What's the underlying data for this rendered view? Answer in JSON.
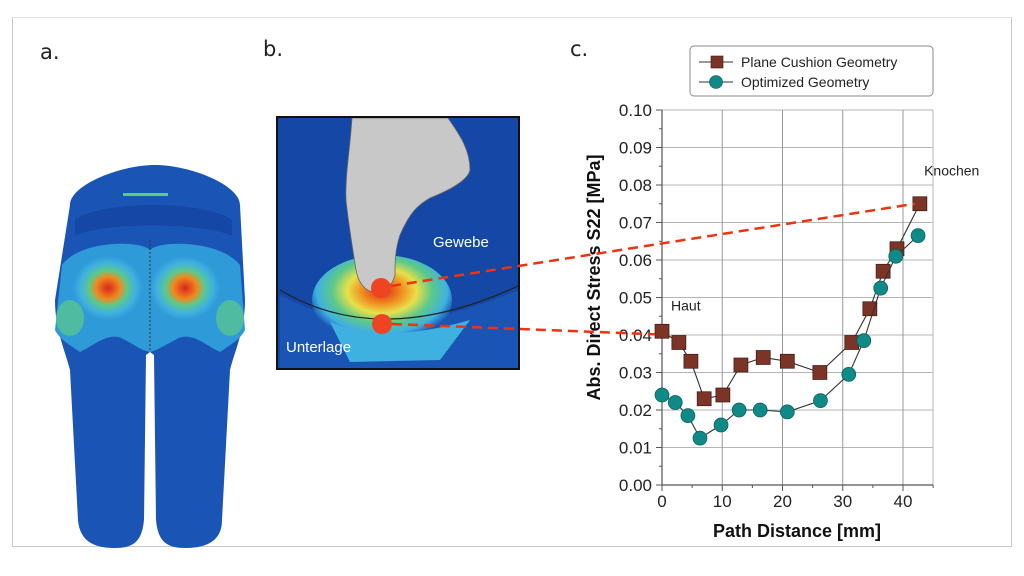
{
  "figure": {
    "panel_labels": [
      "a.",
      "b.",
      "c."
    ],
    "panel_b": {
      "labels": {
        "tissue": "Gewebe",
        "support": "Unterlage"
      }
    },
    "colors": {
      "fem_blue_dark": "#1447a6",
      "fem_blue_mid": "#2a86d4",
      "fem_cyan": "#3fb1e0",
      "fem_green": "#5cc98a",
      "fem_yellow": "#e8e04a",
      "fem_orange": "#f08a1e",
      "fem_red": "#d9281c",
      "marker_red": "#ee4422",
      "series_square": "#7b3426",
      "series_circle": "#0f8a86",
      "dashed_connector": "#ee3311"
    }
  },
  "chart_data": {
    "type": "line",
    "title": "",
    "xlabel": "Path Distance [mm]",
    "ylabel": "Abs. Direct Stress S22 [MPa]",
    "xlim": [
      0,
      45
    ],
    "ylim": [
      0.0,
      0.1
    ],
    "xticks": [
      0,
      10,
      20,
      30,
      40
    ],
    "xtick_labels": [
      "0",
      "10",
      "20",
      "30",
      "40"
    ],
    "yticks": [
      0.0,
      0.01,
      0.02,
      0.03,
      0.04,
      0.05,
      0.06,
      0.07,
      0.08,
      0.09,
      0.1
    ],
    "ytick_labels": [
      "0.00",
      "0.01",
      "0.02",
      "0.03",
      "0.04",
      "0.05",
      "0.06",
      "0.07",
      "0.08",
      "0.09",
      "0.10"
    ],
    "grid": true,
    "legend_position": "top-right",
    "series": [
      {
        "name": "Plane Cushion Geometry",
        "marker": "square",
        "x": [
          0,
          2.8,
          4.8,
          7.0,
          10.1,
          13.1,
          16.8,
          20.8,
          26.2,
          31.5,
          34.5,
          36.7,
          39.0,
          42.8
        ],
        "y": [
          0.041,
          0.038,
          0.033,
          0.023,
          0.024,
          0.032,
          0.034,
          0.033,
          0.03,
          0.038,
          0.047,
          0.057,
          0.063,
          0.075
        ]
      },
      {
        "name": "Optimized Geometry",
        "marker": "circle",
        "x": [
          0,
          2.2,
          4.3,
          6.3,
          9.8,
          12.8,
          16.3,
          20.8,
          26.3,
          31.0,
          33.5,
          36.3,
          38.8,
          42.5
        ],
        "y": [
          0.024,
          0.022,
          0.0185,
          0.0125,
          0.016,
          0.02,
          0.02,
          0.0195,
          0.0225,
          0.0295,
          0.0385,
          0.0525,
          0.061,
          0.0665
        ]
      }
    ],
    "annotations": [
      {
        "text": "Knochen",
        "at_x": 43.5,
        "at_y": 0.0825
      },
      {
        "text": "Haut",
        "at_x": 1.5,
        "at_y": 0.0465
      }
    ]
  }
}
